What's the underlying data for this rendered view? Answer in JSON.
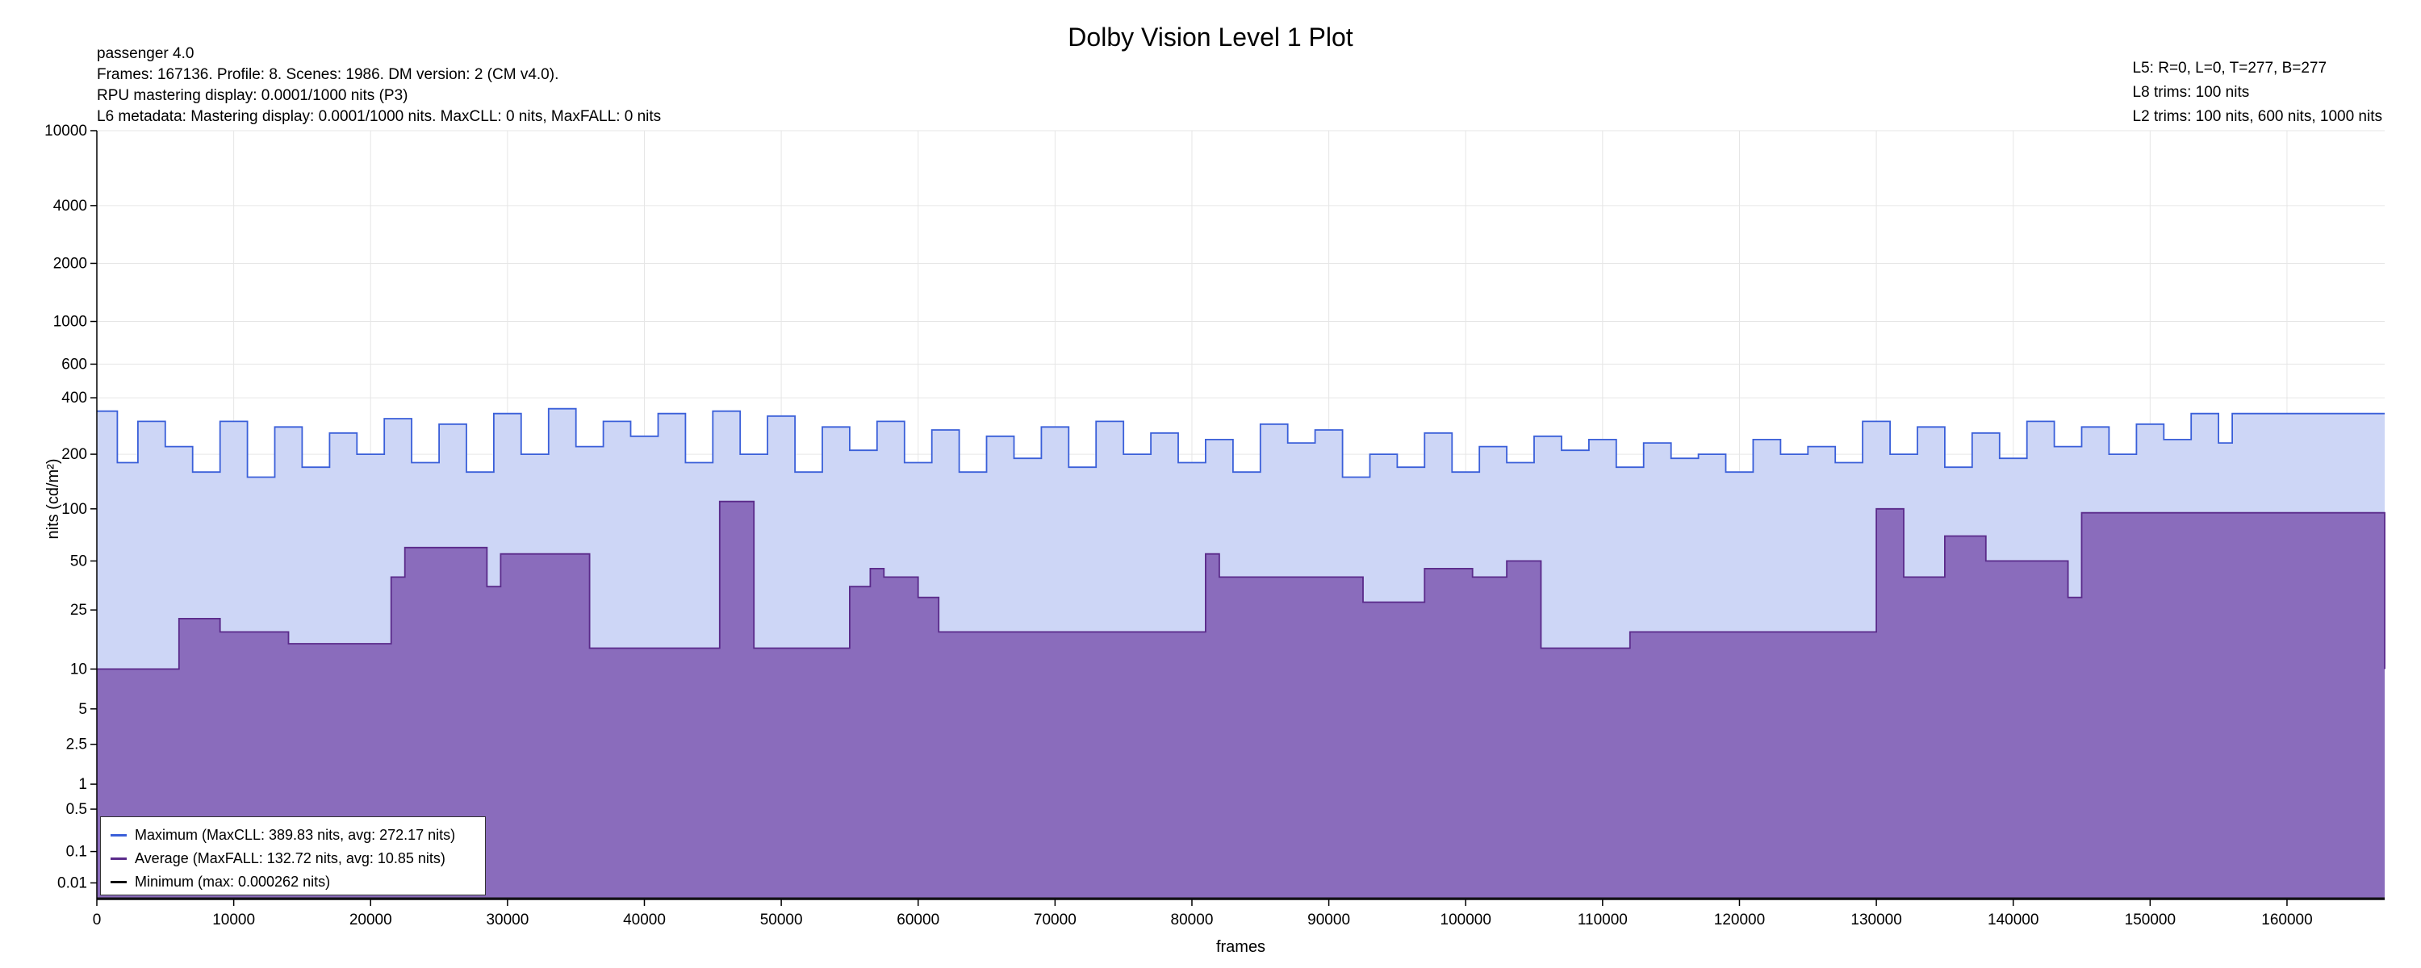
{
  "header": {
    "title": "Dolby Vision Level 1 Plot",
    "left_lines": [
      "passenger 4.0",
      "Frames: 167136. Profile: 8. Scenes: 1986. DM version: 2 (CM v4.0).",
      "RPU mastering display: 0.0001/1000 nits  (P3)",
      "L6 metadata: Mastering display: 0.0001/1000 nits. MaxCLL: 0 nits, MaxFALL: 0 nits"
    ],
    "right_lines": [
      "L5: R=0, L=0, T=277, B=277",
      "L8 trims: 100 nits",
      "L2 trims: 100 nits, 600 nits, 1000 nits"
    ]
  },
  "chart_data": {
    "type": "area",
    "title": "Dolby Vision Level 1 Plot",
    "xlabel": "frames",
    "ylabel": "nits (cd/m²)",
    "xlim": [
      0,
      167136
    ],
    "y_scale": "pq",
    "x_ticks": [
      0,
      10000,
      20000,
      30000,
      40000,
      50000,
      60000,
      70000,
      80000,
      90000,
      100000,
      110000,
      120000,
      130000,
      140000,
      150000,
      160000
    ],
    "y_ticks": [
      0.01,
      0.1,
      0.5,
      1,
      2.5,
      5,
      10,
      25,
      50,
      100,
      200,
      400,
      600,
      1000,
      2000,
      4000,
      10000
    ],
    "grid": true,
    "legend_position": "bottom-left",
    "series": [
      {
        "name": "Maximum (MaxCLL: 389.83 nits, avg: 272.17 nits)",
        "color": "#3a5fd9",
        "fill": "#cdd6f6",
        "x": [
          0,
          1500,
          3000,
          5000,
          7000,
          9000,
          11000,
          13000,
          15000,
          17000,
          19000,
          21000,
          23000,
          25000,
          27000,
          29000,
          31000,
          33000,
          35000,
          37000,
          39000,
          41000,
          43000,
          45000,
          47000,
          49000,
          51000,
          53000,
          55000,
          57000,
          59000,
          61000,
          63000,
          65000,
          67000,
          69000,
          71000,
          73000,
          75000,
          77000,
          79000,
          81000,
          83000,
          85000,
          87000,
          89000,
          91000,
          93000,
          95000,
          97000,
          99000,
          101000,
          103000,
          105000,
          107000,
          109000,
          111000,
          113000,
          115000,
          117000,
          119000,
          121000,
          123000,
          125000,
          127000,
          129000,
          131000,
          133000,
          135000,
          137000,
          139000,
          141000,
          143000,
          145000,
          147000,
          149000,
          151000,
          153000,
          155000,
          156000,
          167136
        ],
        "y": [
          340,
          180,
          300,
          220,
          160,
          300,
          150,
          280,
          170,
          260,
          200,
          310,
          180,
          290,
          160,
          330,
          200,
          350,
          220,
          300,
          250,
          330,
          180,
          340,
          200,
          320,
          160,
          280,
          210,
          300,
          180,
          270,
          160,
          250,
          190,
          280,
          170,
          300,
          200,
          260,
          180,
          240,
          160,
          290,
          230,
          270,
          150,
          200,
          170,
          260,
          160,
          220,
          180,
          250,
          210,
          240,
          170,
          230,
          190,
          200,
          160,
          240,
          200,
          220,
          180,
          300,
          200,
          280,
          170,
          260,
          190,
          300,
          220,
          280,
          200,
          290,
          240,
          330,
          230,
          330,
          330
        ]
      },
      {
        "name": "Average (MaxFALL: 132.72 nits, avg: 10.85 nits)",
        "color": "#5a2a8a",
        "fill": "#8a6cbc",
        "x": [
          0,
          6000,
          9000,
          14000,
          21500,
          22500,
          28500,
          29500,
          36000,
          45500,
          48000,
          55000,
          56500,
          57500,
          60000,
          61500,
          81000,
          82000,
          92500,
          97000,
          100500,
          103000,
          105500,
          112000,
          123500,
          130000,
          132000,
          135000,
          138000,
          144000,
          145000,
          167136
        ],
        "y": [
          10,
          22,
          18,
          15,
          40,
          60,
          35,
          55,
          14,
          110,
          14,
          35,
          45,
          40,
          30,
          18,
          55,
          40,
          28,
          45,
          40,
          50,
          14,
          18,
          18,
          100,
          40,
          70,
          50,
          30,
          95,
          10
        ]
      },
      {
        "name": "Minimum (max: 0.000262 nits)",
        "color": "#111111",
        "fill": "none",
        "x": [
          0,
          167136
        ],
        "y": [
          0.0001,
          0.0001
        ]
      }
    ]
  }
}
